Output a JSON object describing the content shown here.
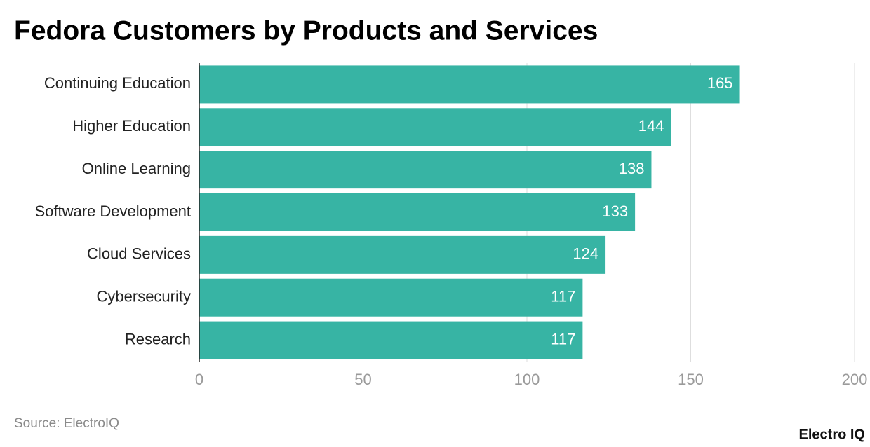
{
  "chart_data": {
    "type": "bar",
    "orientation": "horizontal",
    "title": "Fedora Customers by Products and Services",
    "categories": [
      "Continuing Education",
      "Higher Education",
      "Online Learning",
      "Software Development",
      "Cloud Services",
      "Cybersecurity",
      "Research"
    ],
    "values": [
      165,
      144,
      138,
      133,
      124,
      117,
      117
    ],
    "color": "#37b4a4",
    "xlim": [
      0,
      200
    ],
    "xticks": [
      0,
      50,
      100,
      150,
      200
    ],
    "grid": true,
    "source": "Source: ElectroIQ",
    "brand": "Electro IQ"
  }
}
